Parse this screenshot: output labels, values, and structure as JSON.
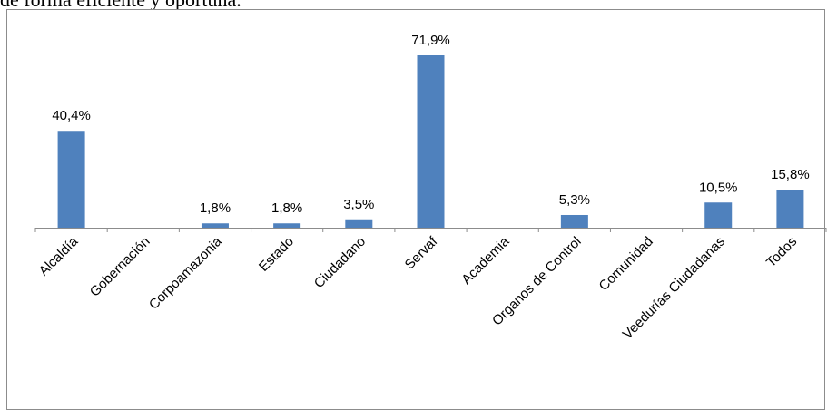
{
  "document": {
    "text_above": "de forma eficiente y oportuna."
  },
  "chart_data": {
    "type": "bar",
    "title": "",
    "xlabel": "",
    "ylabel": "",
    "ylim": [
      0,
      80
    ],
    "grid": false,
    "legend": "none",
    "bar_color": "#4F81BD",
    "categories": [
      "Alcaldía",
      "Gobernación",
      "Corpoamazonia",
      "Estado",
      "Ciudadano",
      "Servaf",
      "Academia",
      "Organos de Control",
      "Comunidad",
      "Veedurías Ciudadanas",
      "Todos"
    ],
    "values": [
      40.4,
      0,
      1.8,
      1.8,
      3.5,
      71.9,
      0,
      5.3,
      0,
      10.5,
      15.8
    ],
    "data_labels": [
      "40,4%",
      "",
      "1,8%",
      "1,8%",
      "3,5%",
      "71,9%",
      "",
      "5,3%",
      "",
      "10,5%",
      "15,8%"
    ]
  }
}
